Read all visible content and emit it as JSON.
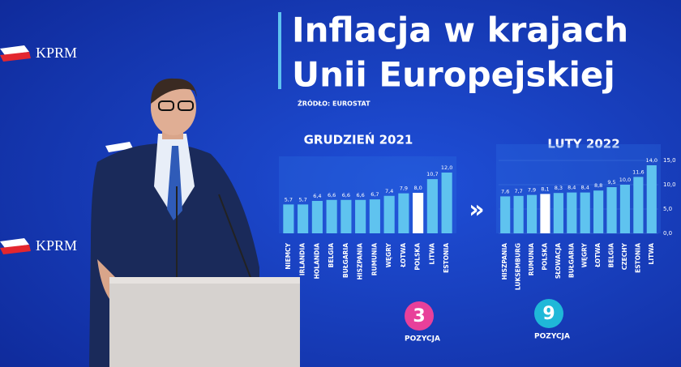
{
  "brand": "KPRM",
  "title_line1": "Inflacja w krajach",
  "title_line2": "Unii Europejskiej",
  "source": "ŹRÓDŁO: EUROSTAT",
  "chart_data": [
    {
      "type": "bar",
      "title": "GRUDZIEŃ 2021",
      "categories": [
        "NIEMCY",
        "IRLANDIA",
        "HOLANDIA",
        "BELGIA",
        "BUŁGARIA",
        "HISZPANIA",
        "RUMUNIA",
        "WĘGRY",
        "ŁOTWA",
        "POLSKA",
        "LITWA",
        "ESTONIA"
      ],
      "values": [
        5.7,
        5.7,
        6.4,
        6.6,
        6.6,
        6.6,
        6.7,
        7.4,
        7.9,
        8.0,
        10.7,
        12.0
      ],
      "value_labels": [
        "5,7",
        "5,7",
        "6,4",
        "6,6",
        "6,6",
        "6,6",
        "6,7",
        "7,4",
        "7,9",
        "8,0",
        "10,7",
        "12,0"
      ],
      "colors": [
        "#5fc3ef",
        "#5fc3ef",
        "#5fc3ef",
        "#5fc3ef",
        "#5fc3ef",
        "#5fc3ef",
        "#5fc3ef",
        "#5fc3ef",
        "#5fc3ef",
        "#ffffff",
        "#5fc3ef",
        "#5fc3ef"
      ],
      "position": "3",
      "position_label": "POZYCJA",
      "position_color": "#e8409a"
    },
    {
      "type": "bar",
      "title": "LUTY 2022",
      "categories": [
        "HISZPANIA",
        "LUKSEMBURG",
        "RUMUNIA",
        "POLSKA",
        "SŁOWACJA",
        "BUŁGARIA",
        "WĘGRY",
        "ŁOTWA",
        "BELGIA",
        "CZECHY",
        "ESTONIA",
        "LITWA"
      ],
      "values": [
        7.6,
        7.7,
        7.9,
        8.1,
        8.3,
        8.4,
        8.4,
        8.8,
        9.5,
        10.0,
        11.6,
        14.0
      ],
      "value_labels": [
        "7,6",
        "7,7",
        "7,9",
        "8,1",
        "8,3",
        "8,4",
        "8,4",
        "8,8",
        "9,5",
        "10,0",
        "11,6",
        "14,0"
      ],
      "colors": [
        "#5fc3ef",
        "#5fc3ef",
        "#5fc3ef",
        "#ffffff",
        "#5fc3ef",
        "#5fc3ef",
        "#5fc3ef",
        "#5fc3ef",
        "#5fc3ef",
        "#5fc3ef",
        "#5fc3ef",
        "#5fc3ef"
      ],
      "ylim": [
        0,
        15
      ],
      "yticks": [
        {
          "value": 0,
          "label": "0,0"
        },
        {
          "value": 5,
          "label": "5,0"
        },
        {
          "value": 10,
          "label": "10,0"
        },
        {
          "value": 15,
          "label": "15,0"
        }
      ],
      "position": "9",
      "position_label": "POZYCJA",
      "position_color": "#1fb8d8"
    }
  ]
}
